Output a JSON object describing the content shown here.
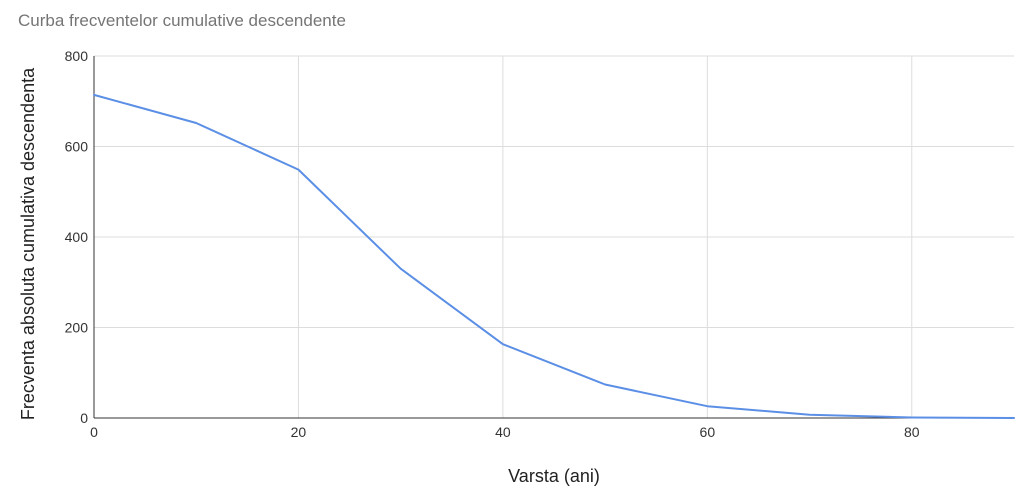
{
  "chart_data": {
    "type": "line",
    "title": "Curba frecventelor cumulative descendente",
    "xlabel": "Varsta (ani)",
    "ylabel": "Frecventa absoluta cumulativa descendenta",
    "xlim": [
      0,
      90
    ],
    "ylim": [
      0,
      800
    ],
    "xticks": [
      0,
      20,
      40,
      60,
      80
    ],
    "yticks": [
      0,
      200,
      400,
      600,
      800
    ],
    "grid": true,
    "legend": "none",
    "series": [
      {
        "color": "#5b8fe6",
        "x": [
          0,
          10,
          20,
          30,
          40,
          50,
          60,
          70,
          80,
          90
        ],
        "y": [
          714,
          652,
          549,
          330,
          163,
          74,
          26,
          7,
          1,
          0
        ]
      }
    ]
  }
}
